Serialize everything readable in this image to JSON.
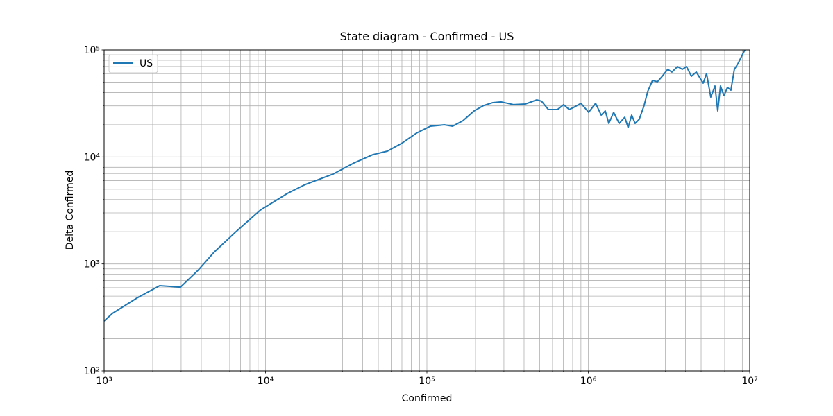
{
  "chart_data": {
    "type": "line",
    "title": "State diagram - Confirmed - US",
    "xlabel": "Confirmed",
    "ylabel": "Delta Confirmed",
    "xscale": "log",
    "yscale": "log",
    "grid": true,
    "legend": "upper left",
    "xlim": [
      1000,
      10000000
    ],
    "ylim": [
      100,
      100000
    ],
    "xticks": [
      {
        "value": 1000,
        "label": "10³"
      },
      {
        "value": 10000,
        "label": "10⁴"
      },
      {
        "value": 100000,
        "label": "10⁵"
      },
      {
        "value": 1000000,
        "label": "10⁶"
      },
      {
        "value": 10000000,
        "label": "10⁷"
      }
    ],
    "yticks": [
      {
        "value": 100,
        "label": "10²"
      },
      {
        "value": 1000,
        "label": "10³"
      },
      {
        "value": 10000,
        "label": "10⁴"
      },
      {
        "value": 100000,
        "label": "10⁵"
      }
    ],
    "xminorticks": [
      2000,
      3000,
      4000,
      5000,
      6000,
      7000,
      8000,
      9000,
      20000,
      30000,
      40000,
      50000,
      60000,
      70000,
      80000,
      90000,
      200000,
      300000,
      400000,
      500000,
      600000,
      700000,
      800000,
      900000,
      2000000,
      3000000,
      4000000,
      5000000,
      6000000,
      7000000,
      8000000,
      9000000
    ],
    "yminorticks": [
      200,
      300,
      400,
      500,
      600,
      700,
      800,
      900,
      2000,
      3000,
      4000,
      5000,
      6000,
      7000,
      8000,
      9000,
      20000,
      30000,
      40000,
      50000,
      60000,
      70000,
      80000,
      90000
    ],
    "x": [
      1000,
      1126,
      1592,
      2209,
      2972,
      3811,
      4787,
      6563,
      9290,
      13650,
      17660,
      26240,
      35320,
      46210,
      56890,
      70630,
      86100,
      105100,
      128200,
      144300,
      167400,
      196000,
      225300,
      256300,
      288600,
      345000,
      408300,
      478600,
      512900,
      566000,
      644000,
      703500,
      762000,
      824500,
      901500,
      1005000,
      1110000,
      1202000,
      1274000,
      1340000,
      1436000,
      1553000,
      1683000,
      1766000,
      1857000,
      1950000,
      2070000,
      2218000,
      2333000,
      2500000,
      2680000,
      2872000,
      3106000,
      3296000,
      3570000,
      3826000,
      4062000,
      4354000,
      4667000,
      5152000,
      5406000,
      5741000,
      6095000,
      6339000,
      6592000,
      6930000,
      7278000,
      7648000,
      8035000,
      8452000,
      8872000,
      9333000
    ],
    "series": [
      {
        "name": "US",
        "color": "#1f77b4",
        "values": [
          293,
          345,
          479,
          627,
          607,
          869,
          1282,
          2004,
          3186,
          4560,
          5530,
          6920,
          8790,
          10500,
          11320,
          13550,
          16680,
          19380,
          19950,
          19380,
          21830,
          26900,
          30300,
          32200,
          32700,
          30800,
          31250,
          34150,
          33200,
          27700,
          27700,
          30800,
          27700,
          29400,
          31700,
          26100,
          31700,
          24600,
          26900,
          20570,
          26100,
          20570,
          23500,
          18800,
          24600,
          20570,
          22500,
          30300,
          40840,
          51900,
          50350,
          56700,
          65900,
          62100,
          69900,
          65900,
          69900,
          56700,
          62100,
          48900,
          60200,
          36230,
          46030,
          26900,
          46030,
          37360,
          44670,
          42070,
          65900,
          74200,
          86100,
          100000
        ]
      }
    ]
  }
}
